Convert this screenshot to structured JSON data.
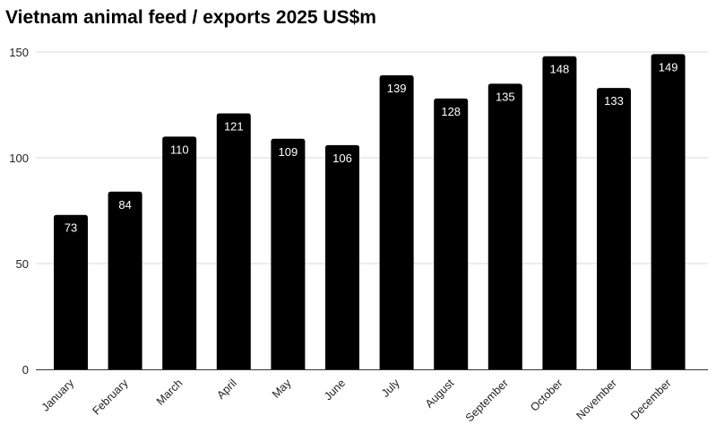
{
  "chart_data": {
    "type": "bar",
    "title": "Vietnam animal feed / exports 2025 US$m",
    "xlabel": "",
    "ylabel": "",
    "ylim": [
      0,
      150
    ],
    "yticks": [
      0,
      50,
      100,
      150
    ],
    "grid": true,
    "legend": "none",
    "bar_color": "#000000",
    "categories": [
      "January",
      "February",
      "March",
      "April",
      "May",
      "June",
      "July",
      "August",
      "September",
      "October",
      "November",
      "December"
    ],
    "values": [
      73,
      84,
      110,
      121,
      109,
      106,
      139,
      128,
      135,
      148,
      133,
      149
    ]
  }
}
